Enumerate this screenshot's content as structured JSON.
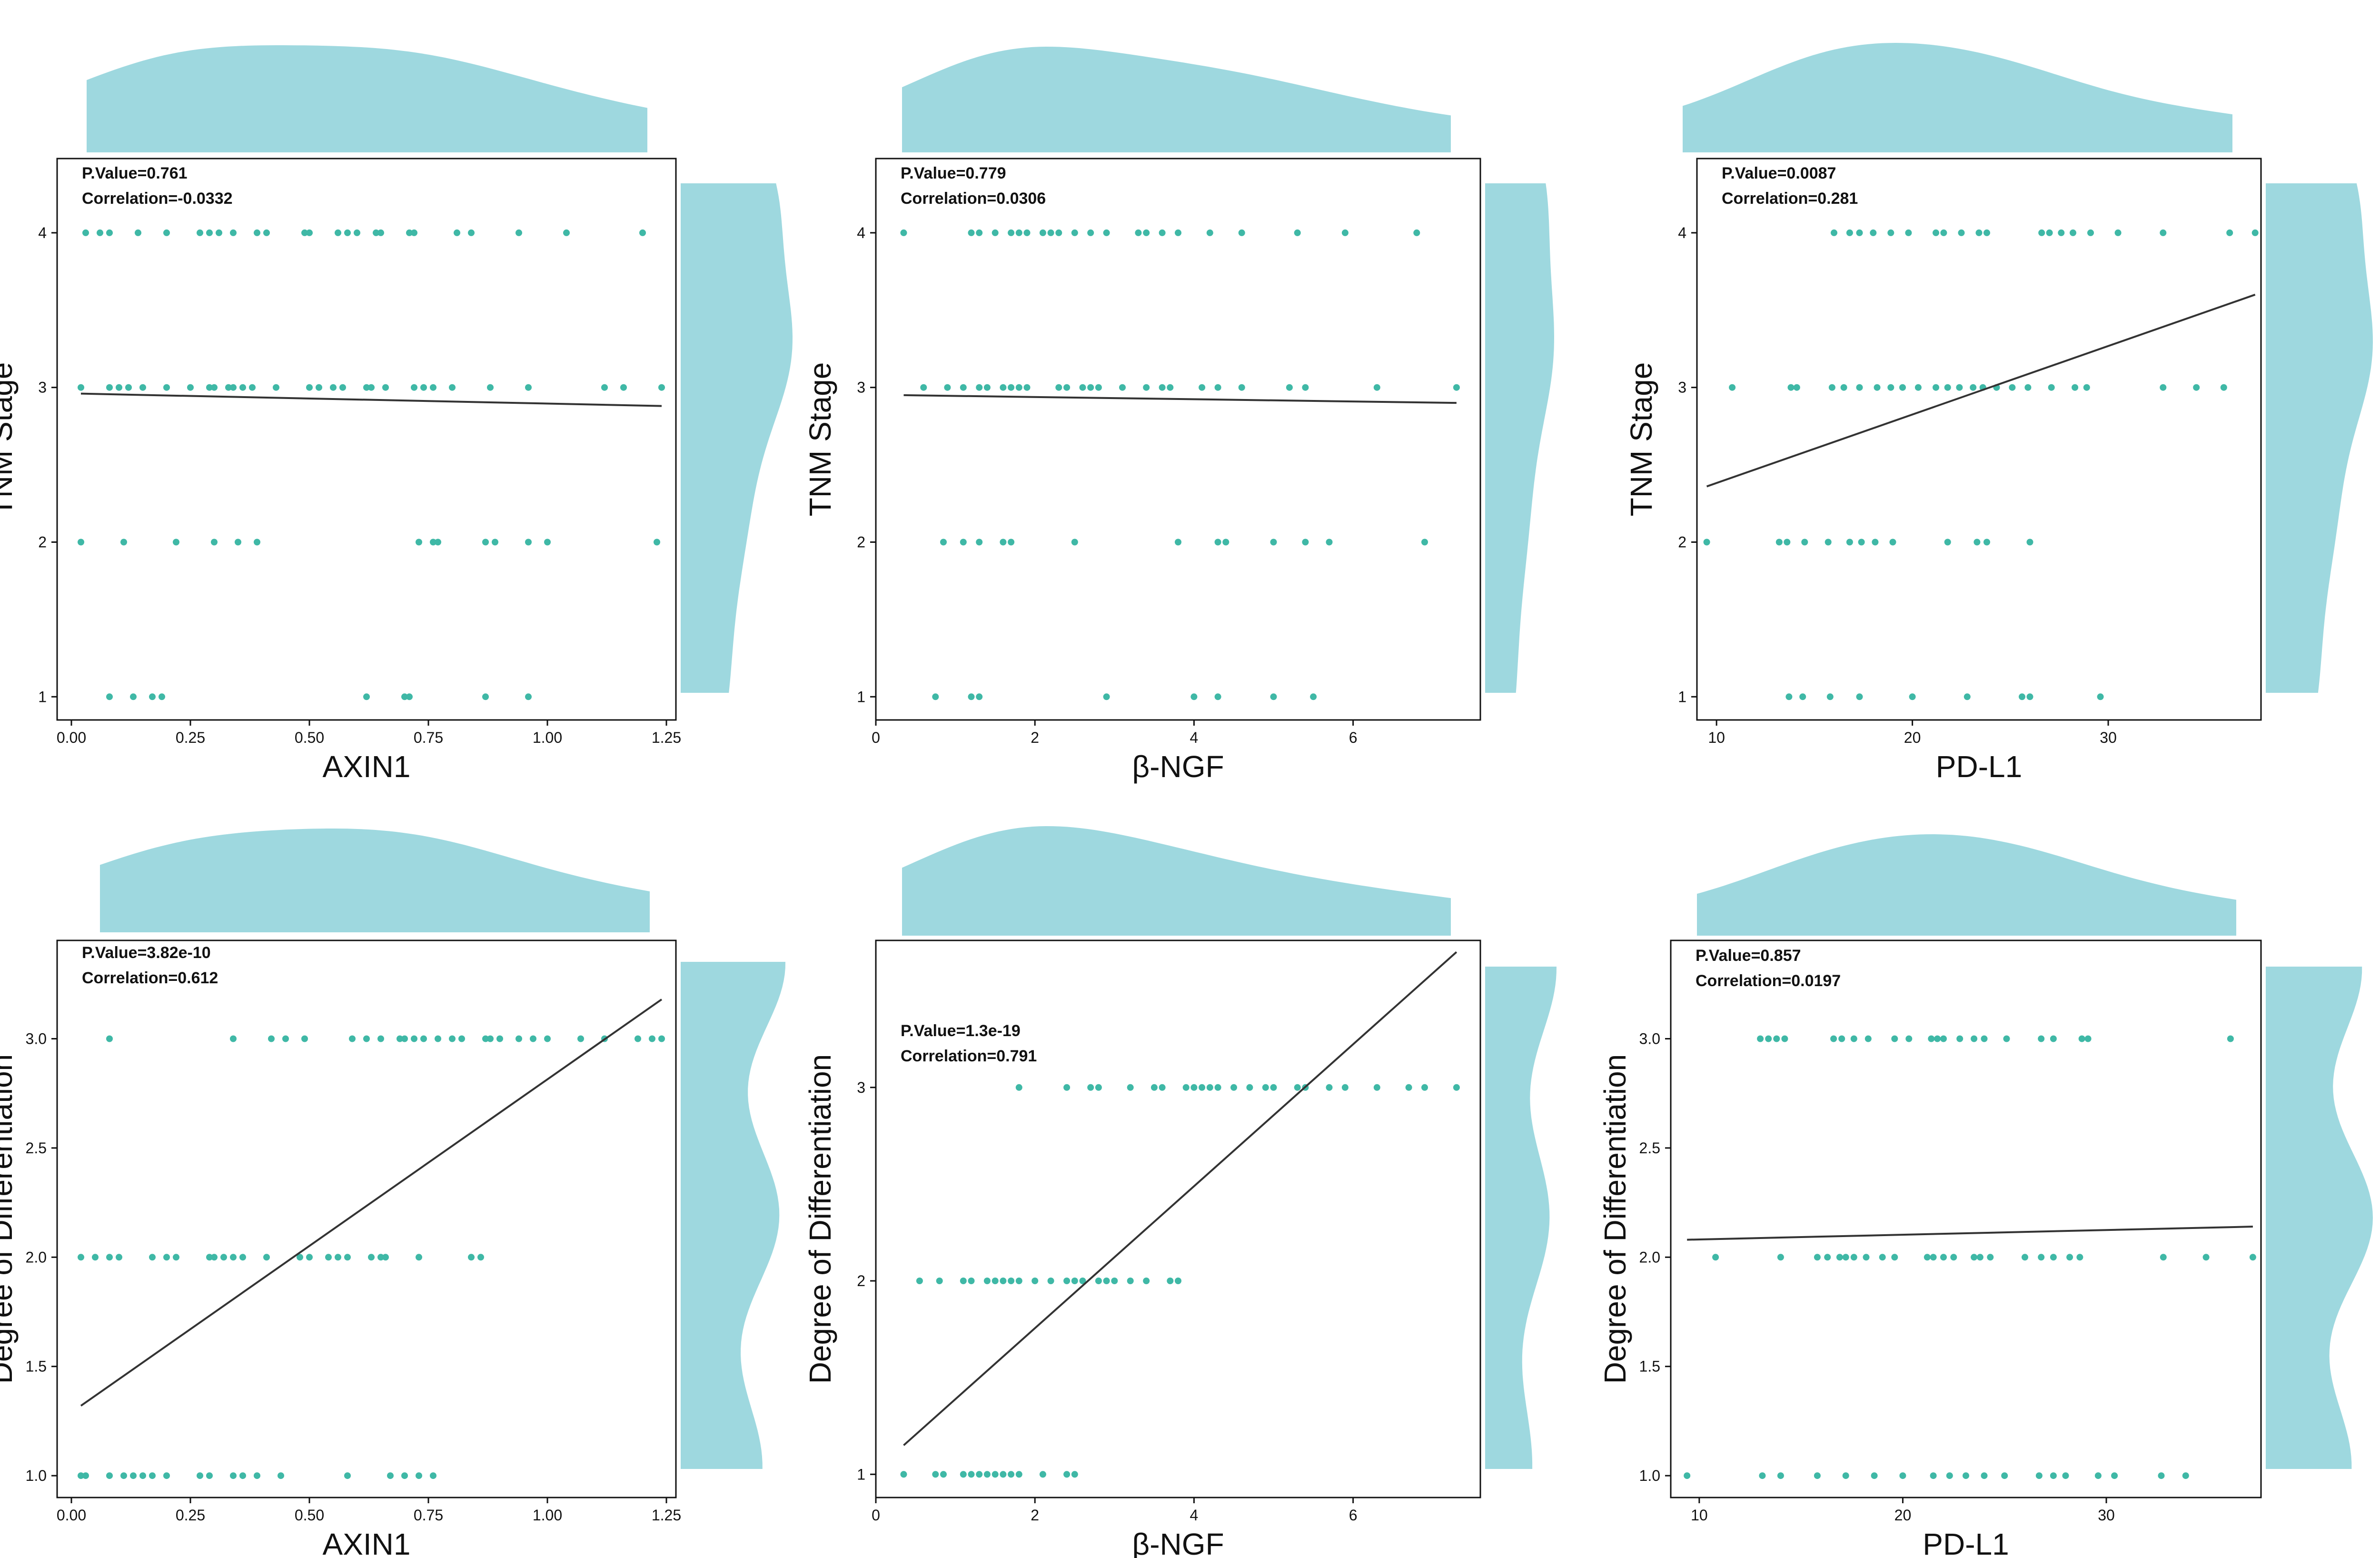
{
  "figure": {
    "point_color": "#3fb8a6",
    "density_color": "#9ed8df",
    "line_color": "#333333"
  },
  "chart_data": [
    {
      "type": "scatter",
      "xlabel": "AXIN1",
      "ylabel": "TNM Stage",
      "annotation": [
        "P.Value=0.761",
        "Correlation=-0.0332"
      ],
      "xlim": [
        -0.03,
        1.27
      ],
      "ylim": [
        0.85,
        4.48
      ],
      "xticks": [
        0,
        0.25,
        0.5,
        0.75,
        1.0,
        1.25
      ],
      "xtick_labels": [
        "0.00",
        "0.25",
        "0.50",
        "0.75",
        "1.00",
        "1.25"
      ],
      "yticks": [
        1,
        2,
        3,
        4
      ],
      "ytick_labels": [
        "1",
        "2",
        "3",
        "4"
      ],
      "fit_line": {
        "x": [
          0.02,
          1.24
        ],
        "y": [
          2.96,
          2.88
        ]
      },
      "points": [
        {
          "y": 4,
          "x": [
            0.03,
            0.06,
            0.08,
            0.14,
            0.2,
            0.27,
            0.29,
            0.31,
            0.34,
            0.39,
            0.41,
            0.49,
            0.5,
            0.56,
            0.58,
            0.6,
            0.64,
            0.65,
            0.71,
            0.72,
            0.81,
            0.84,
            0.94,
            1.04,
            1.2
          ]
        },
        {
          "y": 3,
          "x": [
            0.02,
            0.08,
            0.1,
            0.12,
            0.15,
            0.2,
            0.25,
            0.29,
            0.3,
            0.33,
            0.34,
            0.36,
            0.38,
            0.43,
            0.5,
            0.52,
            0.55,
            0.57,
            0.62,
            0.63,
            0.66,
            0.72,
            0.74,
            0.76,
            0.8,
            0.88,
            0.96,
            1.12,
            1.16,
            1.24
          ]
        },
        {
          "y": 2,
          "x": [
            0.02,
            0.11,
            0.22,
            0.3,
            0.35,
            0.39,
            0.73,
            0.76,
            0.77,
            0.87,
            0.89,
            0.96,
            1.0,
            1.23
          ]
        },
        {
          "y": 1,
          "x": [
            0.08,
            0.13,
            0.17,
            0.19,
            0.62,
            0.7,
            0.71,
            0.87,
            0.96
          ]
        }
      ]
    },
    {
      "type": "scatter",
      "xlabel": "β-NGF",
      "ylabel": "TNM Stage",
      "annotation": [
        "P.Value=0.779",
        "Correlation=0.0306"
      ],
      "xlim": [
        0,
        7.6
      ],
      "ylim": [
        0.85,
        4.48
      ],
      "xticks": [
        0,
        2,
        4,
        6
      ],
      "xtick_labels": [
        "0",
        "2",
        "4",
        "6"
      ],
      "yticks": [
        1,
        2,
        3,
        4
      ],
      "ytick_labels": [
        "1",
        "2",
        "3",
        "4"
      ],
      "fit_line": {
        "x": [
          0.35,
          7.3
        ],
        "y": [
          2.95,
          2.9
        ]
      },
      "points": [
        {
          "y": 4,
          "x": [
            0.35,
            1.2,
            1.3,
            1.5,
            1.7,
            1.8,
            1.9,
            2.1,
            2.2,
            2.3,
            2.5,
            2.7,
            2.9,
            3.3,
            3.4,
            3.6,
            3.8,
            4.2,
            4.6,
            5.3,
            5.9,
            6.8
          ]
        },
        {
          "y": 3,
          "x": [
            0.6,
            0.9,
            1.1,
            1.3,
            1.4,
            1.6,
            1.7,
            1.8,
            1.9,
            2.3,
            2.4,
            2.6,
            2.7,
            2.8,
            3.1,
            3.4,
            3.6,
            3.7,
            4.1,
            4.3,
            4.6,
            5.2,
            5.4,
            6.3,
            7.3
          ]
        },
        {
          "y": 2,
          "x": [
            0.85,
            1.1,
            1.3,
            1.6,
            1.7,
            2.5,
            3.8,
            4.3,
            4.4,
            5.0,
            5.4,
            5.7,
            6.9
          ]
        },
        {
          "y": 1,
          "x": [
            0.75,
            1.2,
            1.3,
            2.9,
            4.0,
            4.3,
            5.0,
            5.5
          ]
        }
      ]
    },
    {
      "type": "scatter",
      "xlabel": "PD-L1",
      "ylabel": "TNM Stage",
      "annotation": [
        "P.Value=0.0087",
        "Correlation=0.281"
      ],
      "xlim": [
        9.0,
        37.8
      ],
      "ylim": [
        0.85,
        4.48
      ],
      "xticks": [
        10,
        20,
        30
      ],
      "xtick_labels": [
        "10",
        "20",
        "30"
      ],
      "yticks": [
        1,
        2,
        3,
        4
      ],
      "ytick_labels": [
        "1",
        "2",
        "3",
        "4"
      ],
      "fit_line": {
        "x": [
          9.5,
          37.5
        ],
        "y": [
          2.36,
          3.6
        ]
      },
      "points": [
        {
          "y": 4,
          "x": [
            16.0,
            16.8,
            17.3,
            18.0,
            18.9,
            19.8,
            21.2,
            21.6,
            22.5,
            23.4,
            23.8,
            26.6,
            27.0,
            27.6,
            28.2,
            29.1,
            30.5,
            32.8,
            36.2,
            37.5
          ]
        },
        {
          "y": 3,
          "x": [
            10.8,
            13.8,
            14.1,
            15.9,
            16.5,
            17.3,
            18.2,
            18.9,
            19.5,
            20.3,
            21.2,
            21.8,
            22.4,
            23.1,
            23.6,
            24.3,
            25.1,
            25.9,
            27.1,
            28.3,
            28.9,
            32.8,
            34.5,
            35.9
          ]
        },
        {
          "y": 2,
          "x": [
            9.5,
            13.2,
            13.6,
            14.5,
            15.7,
            16.8,
            17.4,
            18.1,
            19.0,
            21.8,
            23.3,
            23.8,
            26.0
          ]
        },
        {
          "y": 1,
          "x": [
            13.7,
            14.4,
            15.8,
            17.3,
            20.0,
            22.8,
            25.6,
            26.0,
            29.6
          ]
        }
      ]
    },
    {
      "type": "scatter",
      "xlabel": "AXIN1",
      "ylabel": "Degree of Differentiation",
      "annotation": [
        "P.Value=3.82e-10",
        "Correlation=0.612"
      ],
      "xlim": [
        -0.03,
        1.27
      ],
      "ylim": [
        0.9,
        3.45
      ],
      "xticks": [
        0,
        0.25,
        0.5,
        0.75,
        1.0,
        1.25
      ],
      "xtick_labels": [
        "0.00",
        "0.25",
        "0.50",
        "0.75",
        "1.00",
        "1.25"
      ],
      "yticks": [
        1.0,
        1.5,
        2.0,
        2.5,
        3.0
      ],
      "ytick_labels": [
        "1.0",
        "1.5",
        "2.0",
        "2.5",
        "3.0"
      ],
      "fit_line": {
        "x": [
          0.02,
          1.24
        ],
        "y": [
          1.32,
          3.18
        ]
      },
      "points": [
        {
          "y": 3,
          "x": [
            0.08,
            0.34,
            0.42,
            0.45,
            0.49,
            0.59,
            0.62,
            0.65,
            0.69,
            0.7,
            0.72,
            0.74,
            0.77,
            0.8,
            0.82,
            0.87,
            0.88,
            0.9,
            0.94,
            0.97,
            1.0,
            1.07,
            1.12,
            1.19,
            1.22,
            1.24
          ]
        },
        {
          "y": 2,
          "x": [
            0.02,
            0.05,
            0.08,
            0.1,
            0.17,
            0.2,
            0.22,
            0.29,
            0.3,
            0.32,
            0.34,
            0.36,
            0.41,
            0.48,
            0.5,
            0.54,
            0.56,
            0.58,
            0.63,
            0.65,
            0.66,
            0.73,
            0.84,
            0.86
          ]
        },
        {
          "y": 1,
          "x": [
            0.02,
            0.03,
            0.08,
            0.11,
            0.13,
            0.15,
            0.17,
            0.2,
            0.27,
            0.29,
            0.34,
            0.36,
            0.39,
            0.44,
            0.58,
            0.67,
            0.7,
            0.73,
            0.76
          ]
        }
      ]
    },
    {
      "type": "scatter",
      "xlabel": "β-NGF",
      "ylabel": "Degree of Differentiation",
      "annotation": [
        "P.Value=1.3e-19",
        "Correlation=0.791"
      ],
      "xlim": [
        0,
        7.6
      ],
      "ylim": [
        0.88,
        3.76
      ],
      "xticks": [
        0,
        2,
        4,
        6
      ],
      "xtick_labels": [
        "0",
        "2",
        "4",
        "6"
      ],
      "yticks": [
        1,
        2,
        3
      ],
      "ytick_labels": [
        "1",
        "2",
        "3"
      ],
      "fit_line": {
        "x": [
          0.35,
          7.3
        ],
        "y": [
          1.15,
          3.7
        ]
      },
      "points": [
        {
          "y": 3,
          "x": [
            1.8,
            2.4,
            2.7,
            2.8,
            3.2,
            3.5,
            3.6,
            3.9,
            4.0,
            4.1,
            4.2,
            4.3,
            4.5,
            4.7,
            4.9,
            5.0,
            5.3,
            5.4,
            5.7,
            5.9,
            6.3,
            6.7,
            6.9,
            7.3
          ]
        },
        {
          "y": 2,
          "x": [
            0.55,
            0.8,
            1.1,
            1.2,
            1.4,
            1.5,
            1.6,
            1.7,
            1.8,
            2.0,
            2.2,
            2.4,
            2.5,
            2.6,
            2.8,
            2.9,
            3.0,
            3.2,
            3.4,
            3.7,
            3.8
          ]
        },
        {
          "y": 1,
          "x": [
            0.35,
            0.75,
            0.85,
            1.1,
            1.2,
            1.3,
            1.4,
            1.5,
            1.6,
            1.7,
            1.8,
            2.1,
            2.4,
            2.5
          ]
        }
      ]
    },
    {
      "type": "scatter",
      "xlabel": "PD-L1",
      "ylabel": "Degree of Differentiation",
      "annotation": [
        "P.Value=0.857",
        "Correlation=0.0197"
      ],
      "xlim": [
        8.6,
        37.6
      ],
      "ylim": [
        0.9,
        3.45
      ],
      "xticks": [
        10,
        20,
        30
      ],
      "xtick_labels": [
        "10",
        "20",
        "30"
      ],
      "yticks": [
        1.0,
        1.5,
        2.0,
        2.5,
        3.0
      ],
      "ytick_labels": [
        "1.0",
        "1.5",
        "2.0",
        "2.5",
        "3.0"
      ],
      "fit_line": {
        "x": [
          9.4,
          37.2
        ],
        "y": [
          2.08,
          2.14
        ]
      },
      "points": [
        {
          "y": 3,
          "x": [
            13.0,
            13.4,
            13.8,
            14.2,
            16.6,
            17.0,
            17.6,
            18.3,
            19.6,
            20.3,
            21.4,
            21.7,
            22.0,
            22.8,
            23.5,
            24.0,
            25.1,
            26.8,
            27.4,
            28.8,
            29.1,
            36.1
          ]
        },
        {
          "y": 2,
          "x": [
            10.8,
            14.0,
            15.8,
            16.3,
            16.9,
            17.2,
            17.6,
            18.2,
            19.0,
            19.6,
            21.2,
            21.5,
            22.0,
            22.5,
            23.5,
            23.8,
            24.3,
            26.0,
            26.8,
            27.4,
            28.2,
            28.7,
            32.8,
            34.9,
            37.2
          ]
        },
        {
          "y": 1,
          "x": [
            9.4,
            13.1,
            14.0,
            15.8,
            17.2,
            18.6,
            20.0,
            21.5,
            22.3,
            23.1,
            24.0,
            25.0,
            26.7,
            27.4,
            28.0,
            29.6,
            30.4,
            32.7,
            33.9
          ]
        }
      ]
    }
  ]
}
